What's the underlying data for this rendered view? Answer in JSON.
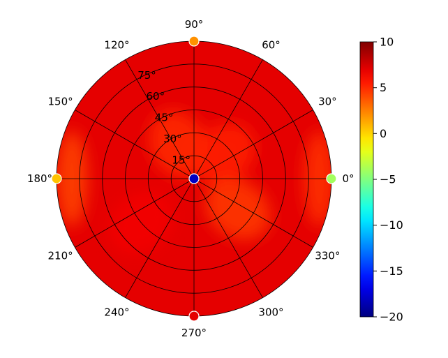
{
  "chart_data": {
    "type": "heatmap",
    "projection": "polar",
    "angle_tick_labels": [
      "0°",
      "30°",
      "60°",
      "90°",
      "120°",
      "150°",
      "180°",
      "210°",
      "240°",
      "270°",
      "300°",
      "330°"
    ],
    "angle_tick_values": [
      0,
      30,
      60,
      90,
      120,
      150,
      180,
      210,
      240,
      270,
      300,
      330
    ],
    "radial_tick_labels": [
      "15°",
      "30°",
      "45°",
      "60°",
      "75°"
    ],
    "radial_tick_values": [
      15,
      30,
      45,
      60,
      75
    ],
    "radial_range": [
      0,
      90
    ],
    "colorbar": {
      "colormap": "jet",
      "range": [
        -20,
        10
      ],
      "tick_labels": [
        "10",
        "5",
        "0",
        "−5",
        "−10",
        "−15",
        "−20"
      ],
      "tick_values": [
        10,
        5,
        0,
        -5,
        -10,
        -15,
        -20
      ]
    },
    "background_value": 7,
    "regions": [
      {
        "angle": 180,
        "radius": 80,
        "value": 4.2
      },
      {
        "angle": 0,
        "radius": 82,
        "value": 4.8
      },
      {
        "angle": 115,
        "radius": 25,
        "value": 5.0
      },
      {
        "angle": 40,
        "radius": 25,
        "value": 5.3
      },
      {
        "angle": 325,
        "radius": 35,
        "value": 4.6
      },
      {
        "angle": 220,
        "radius": 45,
        "value": 6.6
      }
    ],
    "markers": [
      {
        "name": "marker-center",
        "angle": 0,
        "radius": 0,
        "value": -18
      },
      {
        "name": "marker-0deg",
        "angle": 0,
        "radius": 90,
        "value": -4
      },
      {
        "name": "marker-90deg",
        "angle": 90,
        "radius": 90,
        "value": 2
      },
      {
        "name": "marker-180deg",
        "angle": 180,
        "radius": 90,
        "value": 0.5
      },
      {
        "name": "marker-270deg",
        "angle": 270,
        "radius": 90,
        "value": 7
      }
    ],
    "grid": true
  }
}
